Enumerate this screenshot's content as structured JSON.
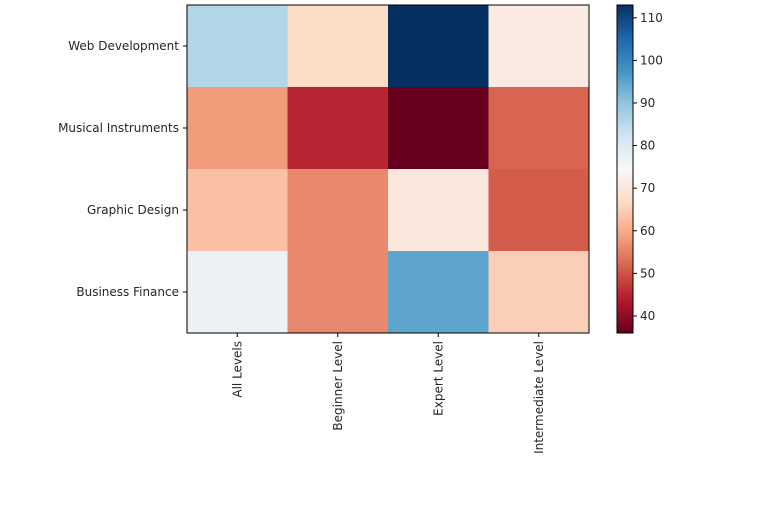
{
  "chart_data": {
    "type": "heatmap",
    "x_categories": [
      "All Levels",
      "Beginner Level",
      "Expert Level",
      "Intermediate Level"
    ],
    "y_categories": [
      "Web Development",
      "Musical Instruments",
      "Graphic Design",
      "Business Finance"
    ],
    "values": [
      [
        86,
        67,
        113,
        71
      ],
      [
        58,
        45,
        36,
        52
      ],
      [
        63,
        56,
        70,
        51
      ],
      [
        77,
        56,
        95,
        65
      ]
    ],
    "colorscale": "RdBu",
    "colorbar": {
      "min": 36,
      "max": 113,
      "ticks": [
        40,
        50,
        60,
        70,
        80,
        90,
        100,
        110
      ]
    },
    "title": "",
    "xlabel": "",
    "ylabel": ""
  }
}
